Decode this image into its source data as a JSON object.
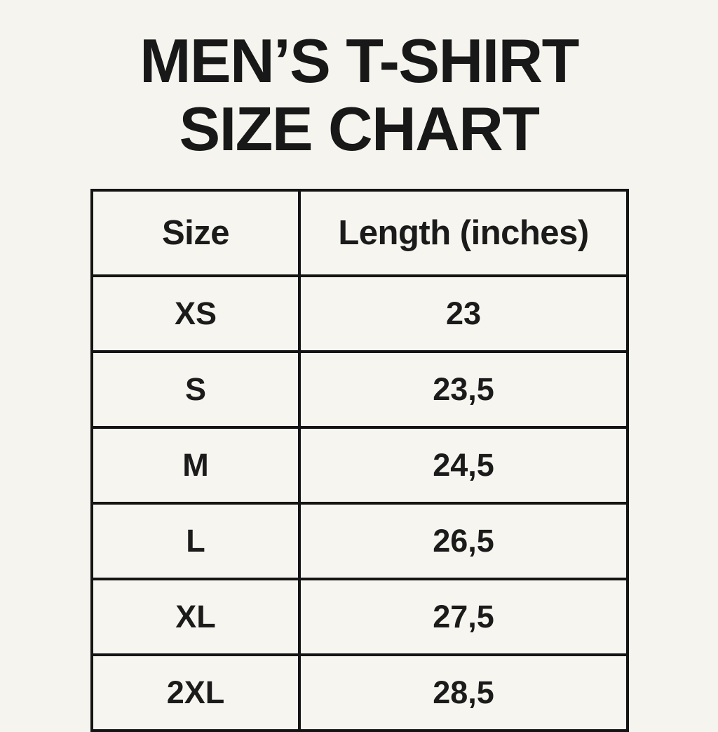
{
  "page": {
    "background_color": "#f6f4ee",
    "cell_background_color": "#f7f5ef",
    "text_color": "#1a1a1a",
    "border_color": "#141414"
  },
  "title": {
    "line1": "MEN’S T-SHIRT",
    "line2": "SIZE CHART"
  },
  "table": {
    "columns": [
      "Size",
      "Length (inches)"
    ],
    "rows": [
      {
        "size": "XS",
        "length": "23"
      },
      {
        "size": "S",
        "length": "23,5"
      },
      {
        "size": "M",
        "length": "24,5"
      },
      {
        "size": "L",
        "length": "26,5"
      },
      {
        "size": "XL",
        "length": "27,5"
      },
      {
        "size": "2XL",
        "length": "28,5"
      }
    ]
  }
}
